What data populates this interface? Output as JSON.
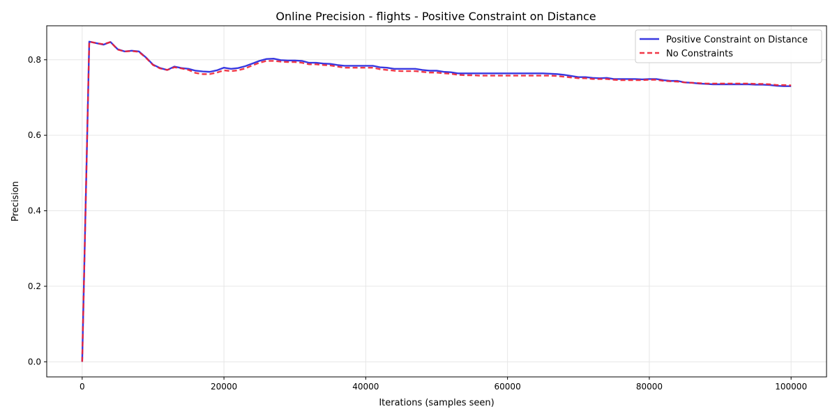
{
  "chart_data": {
    "type": "line",
    "title": "Online Precision - flights - Positive Constraint on Distance",
    "xlabel": "Iterations (samples seen)",
    "ylabel": "Precision",
    "xlim": [
      -5000,
      105000
    ],
    "ylim": [
      -0.04,
      0.89
    ],
    "xticks": [
      0,
      20000,
      40000,
      60000,
      80000,
      100000
    ],
    "yticks": [
      0.0,
      0.2,
      0.4,
      0.6,
      0.8
    ],
    "xtick_labels": [
      "0",
      "20000",
      "40000",
      "60000",
      "80000",
      "100000"
    ],
    "ytick_labels": [
      "0.0",
      "0.2",
      "0.4",
      "0.6",
      "0.8"
    ],
    "grid": true,
    "legend_position": "top-right",
    "x": [
      0,
      1000,
      2000,
      3000,
      4000,
      5000,
      6000,
      7000,
      8000,
      9000,
      10000,
      11000,
      12000,
      13000,
      14000,
      15000,
      16000,
      17000,
      18000,
      19000,
      20000,
      21000,
      22000,
      23000,
      24000,
      25000,
      26000,
      27000,
      28000,
      29000,
      30000,
      31000,
      32000,
      33000,
      34000,
      35000,
      36000,
      37000,
      38000,
      39000,
      40000,
      41000,
      42000,
      43000,
      44000,
      45000,
      46000,
      47000,
      48000,
      49000,
      50000,
      51000,
      52000,
      53000,
      54000,
      55000,
      56000,
      57000,
      58000,
      59000,
      60000,
      61000,
      62000,
      63000,
      64000,
      65000,
      66000,
      67000,
      68000,
      69000,
      70000,
      71000,
      72000,
      73000,
      74000,
      75000,
      76000,
      77000,
      78000,
      79000,
      80000,
      81000,
      82000,
      83000,
      84000,
      85000,
      86000,
      87000,
      88000,
      89000,
      90000,
      91000,
      92000,
      93000,
      94000,
      95000,
      96000,
      97000,
      98000,
      99000,
      100000
    ],
    "series": [
      {
        "name": "Positive Constraint on Distance",
        "color": "#2222dd",
        "style": "solid",
        "values": [
          0.0,
          0.848,
          0.844,
          0.84,
          0.847,
          0.828,
          0.822,
          0.824,
          0.822,
          0.806,
          0.787,
          0.778,
          0.773,
          0.782,
          0.778,
          0.776,
          0.771,
          0.769,
          0.768,
          0.772,
          0.779,
          0.776,
          0.778,
          0.783,
          0.79,
          0.797,
          0.802,
          0.803,
          0.799,
          0.798,
          0.798,
          0.797,
          0.792,
          0.792,
          0.79,
          0.789,
          0.786,
          0.784,
          0.784,
          0.784,
          0.784,
          0.784,
          0.78,
          0.779,
          0.776,
          0.776,
          0.776,
          0.776,
          0.773,
          0.771,
          0.771,
          0.768,
          0.767,
          0.764,
          0.764,
          0.764,
          0.764,
          0.764,
          0.764,
          0.764,
          0.764,
          0.764,
          0.764,
          0.764,
          0.764,
          0.764,
          0.763,
          0.762,
          0.76,
          0.757,
          0.754,
          0.754,
          0.752,
          0.751,
          0.752,
          0.749,
          0.749,
          0.749,
          0.749,
          0.748,
          0.749,
          0.749,
          0.746,
          0.744,
          0.744,
          0.74,
          0.739,
          0.737,
          0.736,
          0.735,
          0.735,
          0.735,
          0.735,
          0.735,
          0.735,
          0.734,
          0.734,
          0.733,
          0.731,
          0.73,
          0.73
        ]
      },
      {
        "name": "No Constraints",
        "color": "#ee2233",
        "style": "dashed",
        "values": [
          0.0,
          0.848,
          0.844,
          0.841,
          0.847,
          0.827,
          0.822,
          0.823,
          0.821,
          0.805,
          0.786,
          0.777,
          0.773,
          0.78,
          0.777,
          0.773,
          0.765,
          0.762,
          0.762,
          0.766,
          0.772,
          0.77,
          0.772,
          0.777,
          0.785,
          0.792,
          0.797,
          0.797,
          0.795,
          0.794,
          0.794,
          0.792,
          0.788,
          0.788,
          0.786,
          0.785,
          0.782,
          0.779,
          0.779,
          0.779,
          0.779,
          0.779,
          0.775,
          0.773,
          0.771,
          0.77,
          0.77,
          0.77,
          0.768,
          0.766,
          0.766,
          0.764,
          0.763,
          0.76,
          0.759,
          0.759,
          0.758,
          0.758,
          0.758,
          0.758,
          0.758,
          0.758,
          0.758,
          0.758,
          0.758,
          0.758,
          0.758,
          0.757,
          0.755,
          0.753,
          0.751,
          0.751,
          0.749,
          0.749,
          0.749,
          0.747,
          0.746,
          0.746,
          0.746,
          0.746,
          0.747,
          0.747,
          0.744,
          0.743,
          0.742,
          0.74,
          0.739,
          0.738,
          0.737,
          0.737,
          0.737,
          0.737,
          0.737,
          0.737,
          0.737,
          0.736,
          0.736,
          0.735,
          0.733,
          0.733,
          0.732
        ]
      }
    ]
  }
}
